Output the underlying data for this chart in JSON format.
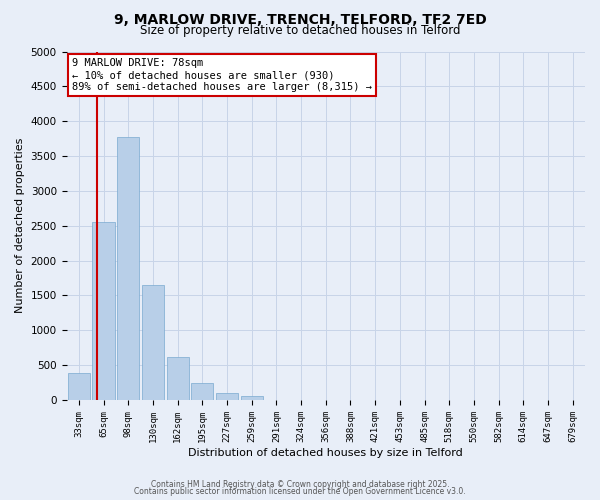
{
  "title": "9, MARLOW DRIVE, TRENCH, TELFORD, TF2 7ED",
  "subtitle": "Size of property relative to detached houses in Telford",
  "xlabel": "Distribution of detached houses by size in Telford",
  "ylabel": "Number of detached properties",
  "categories": [
    "33sqm",
    "65sqm",
    "98sqm",
    "130sqm",
    "162sqm",
    "195sqm",
    "227sqm",
    "259sqm",
    "291sqm",
    "324sqm",
    "356sqm",
    "388sqm",
    "421sqm",
    "453sqm",
    "485sqm",
    "518sqm",
    "550sqm",
    "582sqm",
    "614sqm",
    "647sqm",
    "679sqm"
  ],
  "values": [
    390,
    2550,
    3780,
    1650,
    620,
    250,
    100,
    50,
    0,
    0,
    0,
    0,
    0,
    0,
    0,
    0,
    0,
    0,
    0,
    0,
    0
  ],
  "bar_color": "#b8cfe8",
  "bar_edge_color": "#7aaad0",
  "vline_color": "#cc0000",
  "vline_x": 0.72,
  "annotation_title": "9 MARLOW DRIVE: 78sqm",
  "annotation_line1": "← 10% of detached houses are smaller (930)",
  "annotation_line2": "89% of semi-detached houses are larger (8,315) →",
  "annotation_box_facecolor": "#ffffff",
  "annotation_box_edgecolor": "#cc0000",
  "ylim": [
    0,
    5000
  ],
  "yticks": [
    0,
    500,
    1000,
    1500,
    2000,
    2500,
    3000,
    3500,
    4000,
    4500,
    5000
  ],
  "grid_color": "#c8d4e8",
  "background_color": "#e8eef8",
  "footer1": "Contains HM Land Registry data © Crown copyright and database right 2025.",
  "footer2": "Contains public sector information licensed under the Open Government Licence v3.0."
}
